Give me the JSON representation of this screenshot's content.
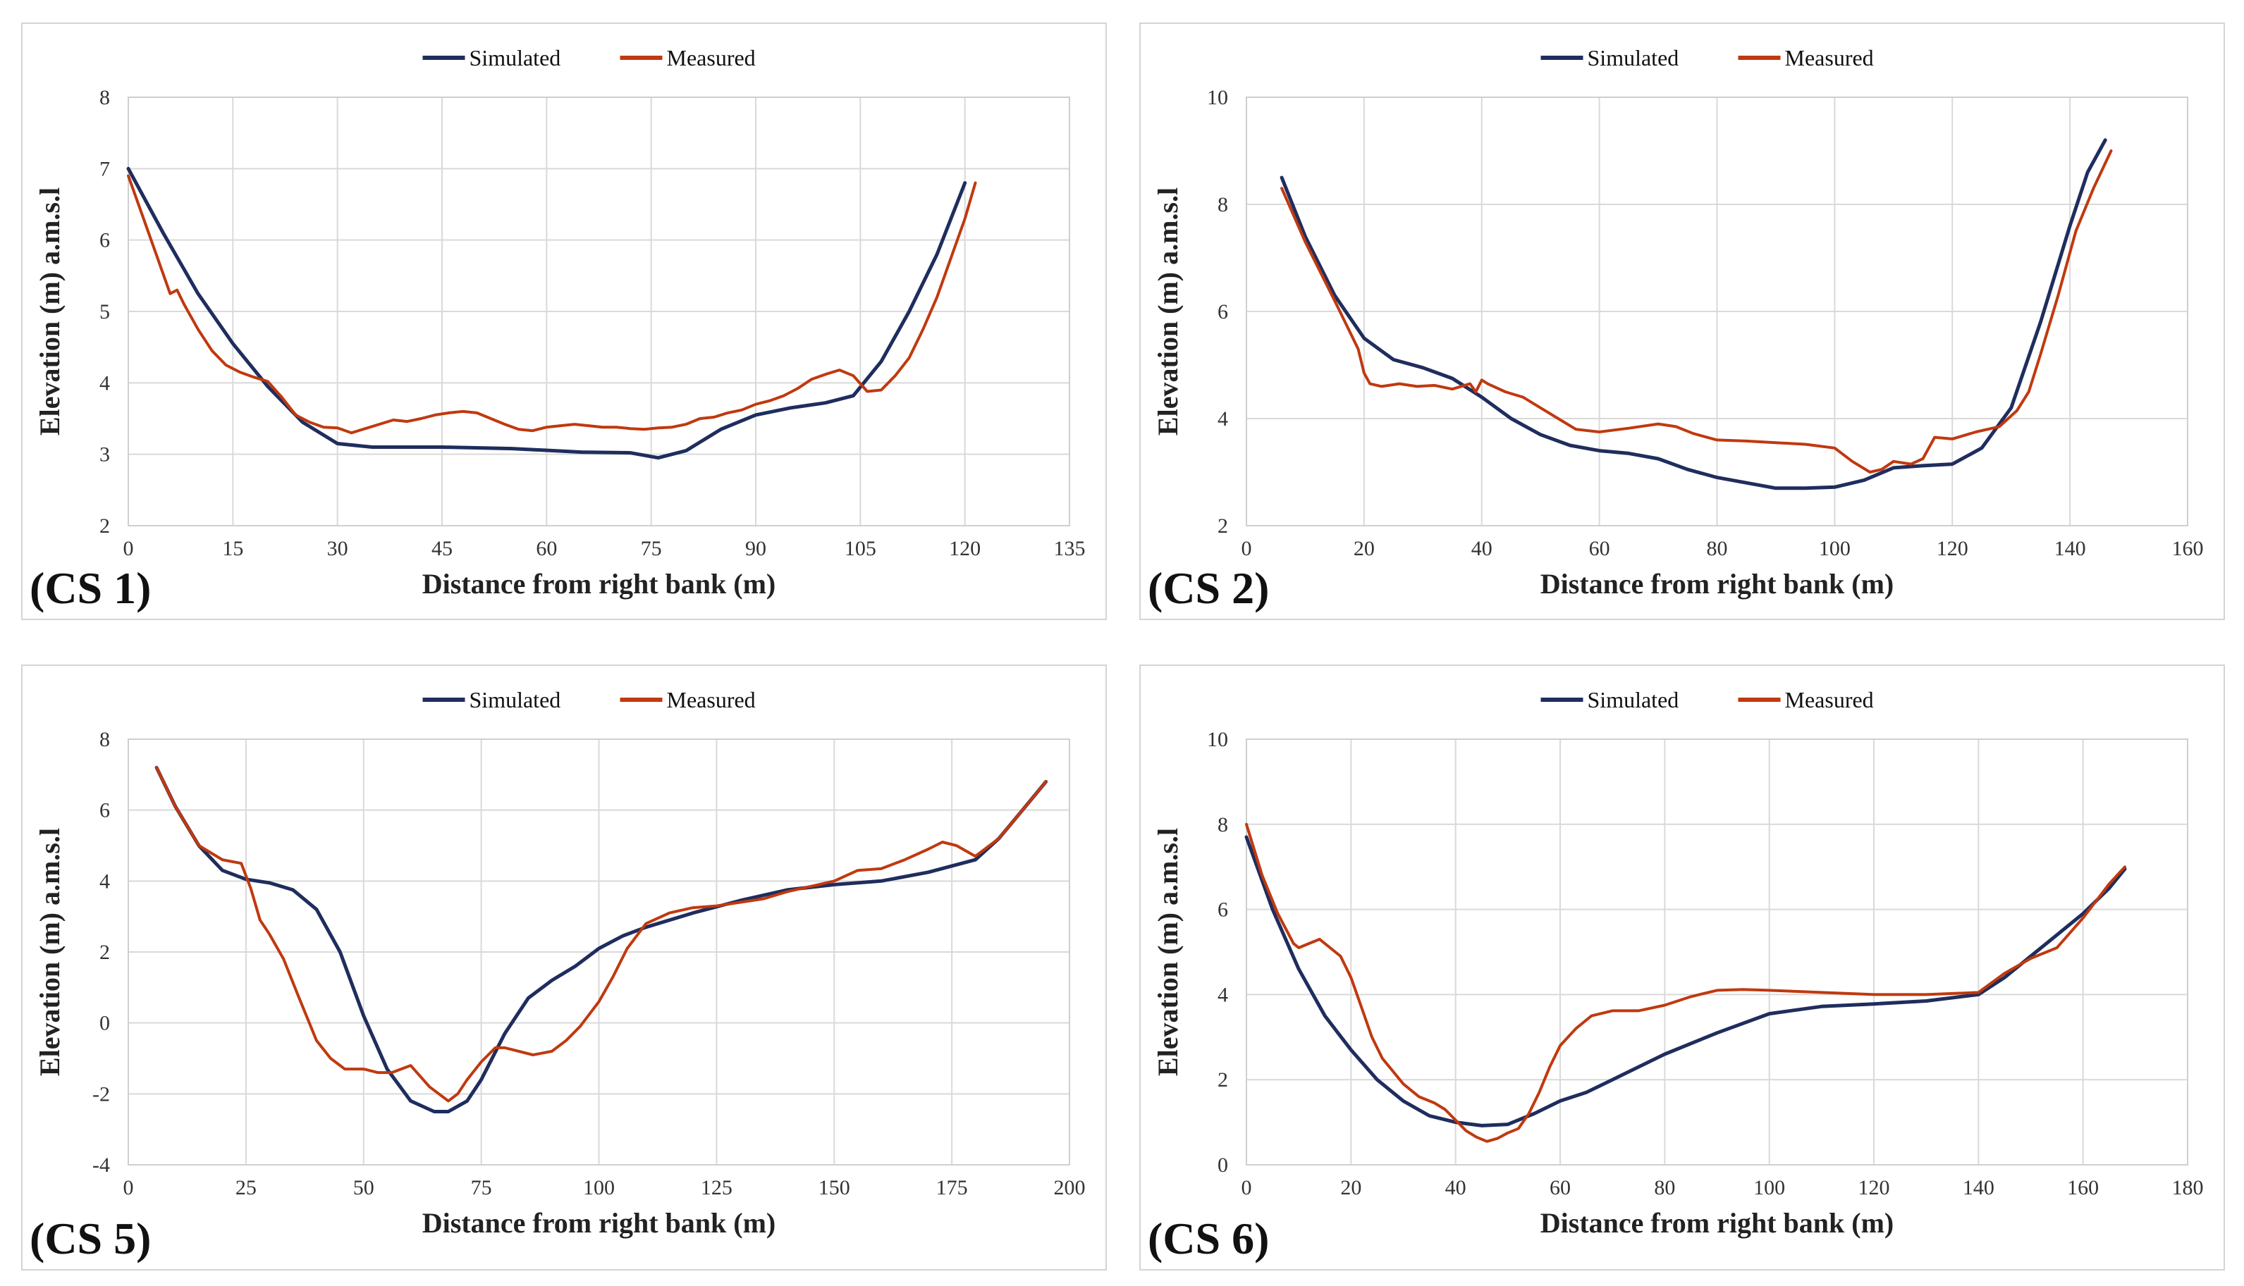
{
  "chart_data": [
    {
      "type": "line",
      "panel_label": "(CS 1)",
      "xlabel": "Distance from right bank (m)",
      "ylabel": "Elevation (m) a.m.s.l",
      "xlim": [
        0,
        135
      ],
      "ylim": [
        2,
        8
      ],
      "xticks": [
        0,
        15,
        30,
        45,
        60,
        75,
        90,
        105,
        120,
        135
      ],
      "yticks": [
        2,
        3,
        4,
        5,
        6,
        7,
        8
      ],
      "legend": [
        "Simulated",
        "Measured"
      ],
      "series": [
        {
          "name": "Simulated",
          "color": "#1f2d5e",
          "x": [
            0,
            5,
            10,
            15,
            20,
            25,
            30,
            35,
            45,
            55,
            65,
            72,
            76,
            80,
            85,
            90,
            95,
            100,
            104,
            108,
            112,
            116,
            120
          ],
          "y": [
            7.0,
            6.1,
            5.25,
            4.55,
            3.95,
            3.45,
            3.15,
            3.1,
            3.1,
            3.08,
            3.03,
            3.02,
            2.95,
            3.05,
            3.35,
            3.55,
            3.65,
            3.72,
            3.82,
            4.3,
            5.0,
            5.8,
            6.8
          ]
        },
        {
          "name": "Measured",
          "color": "#c0390f",
          "x": [
            0,
            2,
            4,
            6,
            7,
            8,
            10,
            12,
            14,
            16,
            18,
            20,
            22,
            24,
            26,
            28,
            30,
            32,
            34,
            36,
            38,
            40,
            42,
            44,
            46,
            48,
            50,
            52,
            54,
            56,
            58,
            60,
            62,
            64,
            66,
            68,
            70,
            72,
            74,
            76,
            78,
            80,
            82,
            84,
            86,
            88,
            90,
            92,
            94,
            96,
            98,
            100,
            102,
            104,
            106,
            108,
            110,
            112,
            114,
            116,
            118,
            120,
            121.5
          ],
          "y": [
            6.9,
            6.35,
            5.8,
            5.25,
            5.3,
            5.1,
            4.75,
            4.45,
            4.25,
            4.15,
            4.08,
            4.02,
            3.8,
            3.55,
            3.45,
            3.38,
            3.37,
            3.3,
            3.36,
            3.42,
            3.48,
            3.46,
            3.5,
            3.55,
            3.58,
            3.6,
            3.58,
            3.5,
            3.42,
            3.35,
            3.33,
            3.38,
            3.4,
            3.42,
            3.4,
            3.38,
            3.38,
            3.36,
            3.35,
            3.37,
            3.38,
            3.42,
            3.5,
            3.52,
            3.58,
            3.62,
            3.7,
            3.75,
            3.82,
            3.92,
            4.05,
            4.12,
            4.18,
            4.1,
            3.88,
            3.9,
            4.1,
            4.35,
            4.75,
            5.2,
            5.75,
            6.3,
            6.8
          ]
        }
      ]
    },
    {
      "type": "line",
      "panel_label": "(CS 2)",
      "xlabel": "Distance from right bank (m)",
      "ylabel": "Elevation (m) a.m.s.l",
      "xlim": [
        0,
        160
      ],
      "ylim": [
        2,
        10
      ],
      "xticks": [
        0,
        20,
        40,
        60,
        80,
        100,
        120,
        140,
        160
      ],
      "yticks": [
        2,
        4,
        6,
        8,
        10
      ],
      "legend": [
        "Simulated",
        "Measured"
      ],
      "series": [
        {
          "name": "Simulated",
          "color": "#1f2d5e",
          "x": [
            6,
            10,
            15,
            20,
            25,
            30,
            35,
            40,
            45,
            50,
            55,
            60,
            65,
            70,
            75,
            80,
            85,
            90,
            95,
            100,
            105,
            110,
            115,
            120,
            125,
            130,
            135,
            140,
            143,
            146
          ],
          "y": [
            8.5,
            7.4,
            6.3,
            5.5,
            5.1,
            4.95,
            4.75,
            4.4,
            4.0,
            3.7,
            3.5,
            3.4,
            3.35,
            3.25,
            3.05,
            2.9,
            2.8,
            2.7,
            2.7,
            2.72,
            2.85,
            3.08,
            3.12,
            3.15,
            3.45,
            4.2,
            5.8,
            7.6,
            8.6,
            9.2
          ]
        },
        {
          "name": "Measured",
          "color": "#c0390f",
          "x": [
            6,
            10,
            15,
            19,
            20,
            21,
            23,
            26,
            29,
            32,
            35,
            38,
            39,
            40,
            41,
            44,
            47,
            50,
            53,
            56,
            60,
            65,
            70,
            73,
            76,
            80,
            85,
            90,
            95,
            100,
            103,
            106,
            108,
            110,
            113,
            115,
            117,
            120,
            124,
            128,
            131,
            133,
            135,
            138,
            141,
            144,
            147
          ],
          "y": [
            8.3,
            7.3,
            6.2,
            5.3,
            4.85,
            4.65,
            4.6,
            4.65,
            4.6,
            4.62,
            4.55,
            4.65,
            4.5,
            4.72,
            4.65,
            4.5,
            4.4,
            4.2,
            4.0,
            3.8,
            3.75,
            3.82,
            3.9,
            3.85,
            3.72,
            3.6,
            3.58,
            3.55,
            3.52,
            3.45,
            3.2,
            3.0,
            3.05,
            3.2,
            3.15,
            3.25,
            3.65,
            3.62,
            3.75,
            3.85,
            4.15,
            4.5,
            5.2,
            6.3,
            7.5,
            8.3,
            9.0
          ]
        }
      ]
    },
    {
      "type": "line",
      "panel_label": "(CS 5)",
      "xlabel": "Distance from right bank (m)",
      "ylabel": "Elevation (m) a.m.s.l",
      "xlim": [
        0,
        200
      ],
      "ylim": [
        -4,
        8
      ],
      "xticks": [
        0,
        25,
        50,
        75,
        100,
        125,
        150,
        175,
        200
      ],
      "yticks": [
        -4,
        -2,
        0,
        2,
        4,
        6,
        8
      ],
      "legend": [
        "Simulated",
        "Measured"
      ],
      "series": [
        {
          "name": "Simulated",
          "color": "#1f2d5e",
          "x": [
            6,
            10,
            15,
            20,
            25,
            30,
            35,
            40,
            45,
            50,
            55,
            60,
            65,
            68,
            72,
            75,
            80,
            85,
            90,
            95,
            100,
            105,
            110,
            120,
            130,
            140,
            150,
            160,
            170,
            180,
            185,
            190,
            195
          ],
          "y": [
            7.2,
            6.1,
            5.0,
            4.3,
            4.05,
            3.95,
            3.75,
            3.2,
            2.0,
            0.2,
            -1.3,
            -2.2,
            -2.5,
            -2.5,
            -2.2,
            -1.6,
            -0.3,
            0.7,
            1.2,
            1.6,
            2.1,
            2.45,
            2.7,
            3.1,
            3.45,
            3.75,
            3.9,
            4.0,
            4.25,
            4.6,
            5.2,
            6.0,
            6.8
          ]
        },
        {
          "name": "Measured",
          "color": "#c0390f",
          "x": [
            6,
            10,
            15,
            20,
            24,
            26,
            28,
            30,
            33,
            36,
            40,
            43,
            46,
            50,
            53,
            56,
            58,
            60,
            62,
            64,
            66,
            68,
            70,
            72,
            75,
            78,
            80,
            83,
            86,
            90,
            93,
            96,
            100,
            103,
            106,
            110,
            115,
            120,
            125,
            130,
            135,
            140,
            145,
            150,
            155,
            160,
            165,
            170,
            173,
            176,
            180,
            185,
            190,
            195
          ],
          "y": [
            7.2,
            6.1,
            5.0,
            4.6,
            4.5,
            3.8,
            2.9,
            2.5,
            1.8,
            0.8,
            -0.5,
            -1.0,
            -1.3,
            -1.3,
            -1.4,
            -1.4,
            -1.3,
            -1.2,
            -1.5,
            -1.8,
            -2.0,
            -2.2,
            -2.0,
            -1.6,
            -1.1,
            -0.7,
            -0.7,
            -0.8,
            -0.9,
            -0.8,
            -0.5,
            -0.1,
            0.6,
            1.3,
            2.1,
            2.8,
            3.1,
            3.25,
            3.3,
            3.4,
            3.5,
            3.7,
            3.85,
            4.0,
            4.3,
            4.35,
            4.6,
            4.9,
            5.1,
            5.0,
            4.7,
            5.2,
            6.0,
            6.8
          ]
        }
      ]
    },
    {
      "type": "line",
      "panel_label": "(CS 6)",
      "xlabel": "Distance from right bank (m)",
      "ylabel": "Elevation (m) a.m.s.l",
      "xlim": [
        0,
        180
      ],
      "ylim": [
        0,
        10
      ],
      "xticks": [
        0,
        20,
        40,
        60,
        80,
        100,
        120,
        140,
        160,
        180
      ],
      "yticks": [
        0,
        2,
        4,
        6,
        8,
        10
      ],
      "legend": [
        "Simulated",
        "Measured"
      ],
      "series": [
        {
          "name": "Simulated",
          "color": "#1f2d5e",
          "x": [
            0,
            5,
            10,
            15,
            20,
            25,
            30,
            35,
            40,
            45,
            50,
            55,
            60,
            65,
            70,
            80,
            90,
            100,
            110,
            120,
            130,
            140,
            145,
            150,
            155,
            160,
            165,
            168
          ],
          "y": [
            7.7,
            6.0,
            4.6,
            3.5,
            2.7,
            2.0,
            1.5,
            1.15,
            1.0,
            0.92,
            0.95,
            1.2,
            1.5,
            1.7,
            2.0,
            2.6,
            3.1,
            3.55,
            3.72,
            3.78,
            3.85,
            4.0,
            4.4,
            4.9,
            5.4,
            5.9,
            6.5,
            6.95
          ]
        },
        {
          "name": "Measured",
          "color": "#c0390f",
          "x": [
            0,
            3,
            6,
            9,
            10,
            12,
            14,
            16,
            18,
            20,
            22,
            24,
            26,
            28,
            30,
            33,
            36,
            38,
            40,
            42,
            44,
            46,
            48,
            50,
            52,
            54,
            56,
            58,
            60,
            63,
            66,
            70,
            75,
            80,
            85,
            90,
            95,
            100,
            110,
            120,
            130,
            140,
            145,
            150,
            155,
            160,
            165,
            168
          ],
          "y": [
            8.0,
            6.8,
            5.9,
            5.2,
            5.1,
            5.2,
            5.3,
            5.1,
            4.9,
            4.4,
            3.7,
            3.0,
            2.5,
            2.2,
            1.9,
            1.6,
            1.45,
            1.3,
            1.05,
            0.8,
            0.65,
            0.55,
            0.62,
            0.75,
            0.85,
            1.2,
            1.7,
            2.3,
            2.8,
            3.2,
            3.5,
            3.62,
            3.62,
            3.75,
            3.95,
            4.1,
            4.12,
            4.1,
            4.05,
            4.0,
            4.0,
            4.05,
            4.5,
            4.85,
            5.1,
            5.8,
            6.6,
            7.0
          ]
        }
      ]
    }
  ]
}
